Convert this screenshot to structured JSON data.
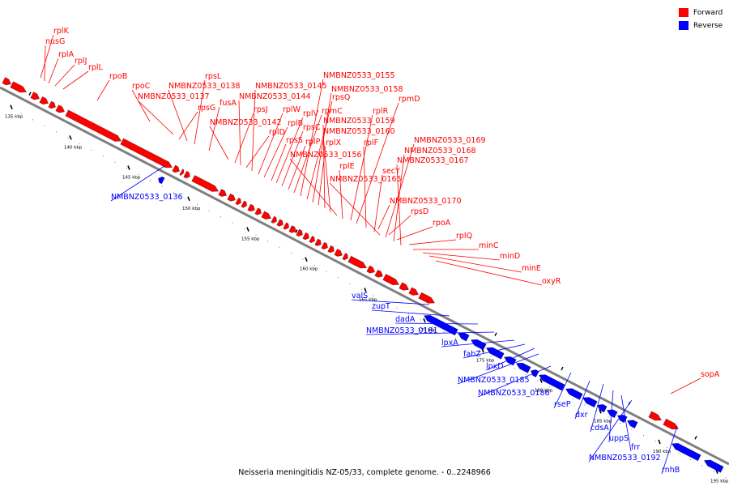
{
  "colors": {
    "forward": "#ff0000",
    "reverse": "#0000ff",
    "backbone": "#808080",
    "text": "#000000"
  },
  "legend": [
    {
      "label": "Forward",
      "color": "#ff0000"
    },
    {
      "label": "Reverse",
      "color": "#0000ff"
    }
  ],
  "caption": "Neisseria meningitidis NZ-05/33, complete genome. - 0..2248966",
  "ticks": [
    "135 kbp",
    "140 kbp",
    "145 kbp",
    "150 kbp",
    "155 kbp",
    "160 kbp",
    "165 kbp",
    "170 kbp",
    "175 kbp",
    "180 kbp",
    "185 kbp",
    "190 kbp",
    "195 kbp"
  ],
  "forward_labels": [
    "rplK",
    "nusG",
    "rplA",
    "rplJ",
    "rplL",
    "rpoB",
    "rpoC",
    "NMBNZ0533_0137",
    "rpsG",
    "NMBNZ0533_0138",
    "rpsL",
    "fusA",
    "NMBNZ0533_0142",
    "rpsJ",
    "NMBNZ0533_0144",
    "rplD",
    "NMBNZ0533_0145",
    "rplW",
    "rplB",
    "rpsS",
    "rplV",
    "rpsC",
    "rplP",
    "rpmC",
    "NMBNZ0533_0155",
    "rpsQ",
    "NMBNZ0533_0158",
    "rplX",
    "NMBNZ0533_0159",
    "NMBNZ0533_0160",
    "NMBNZ0533_0156",
    "rplE",
    "rplR",
    "rpmD",
    "rplF",
    "secY",
    "NMBNZ0533_0165",
    "NMBNZ0533_0169",
    "NMBNZ0533_0168",
    "NMBNZ0533_0167",
    "NMBNZ0533_0170",
    "rpsD",
    "rpoA",
    "rplQ",
    "minC",
    "minD",
    "minE",
    "oxyR",
    "sopA"
  ],
  "reverse_labels": [
    "NMBNZ0533_0136",
    "valS",
    "zupT",
    "dadA",
    "NMBNZ0533_0181",
    "lpxA",
    "fabZ",
    "lpxD",
    "NMBNZ0533_0185",
    "NMBNZ0533_0186",
    "rseP",
    "dxr",
    "cdsA",
    "uppS",
    "frr",
    "NMBNZ0533_0192",
    "rnhB"
  ]
}
